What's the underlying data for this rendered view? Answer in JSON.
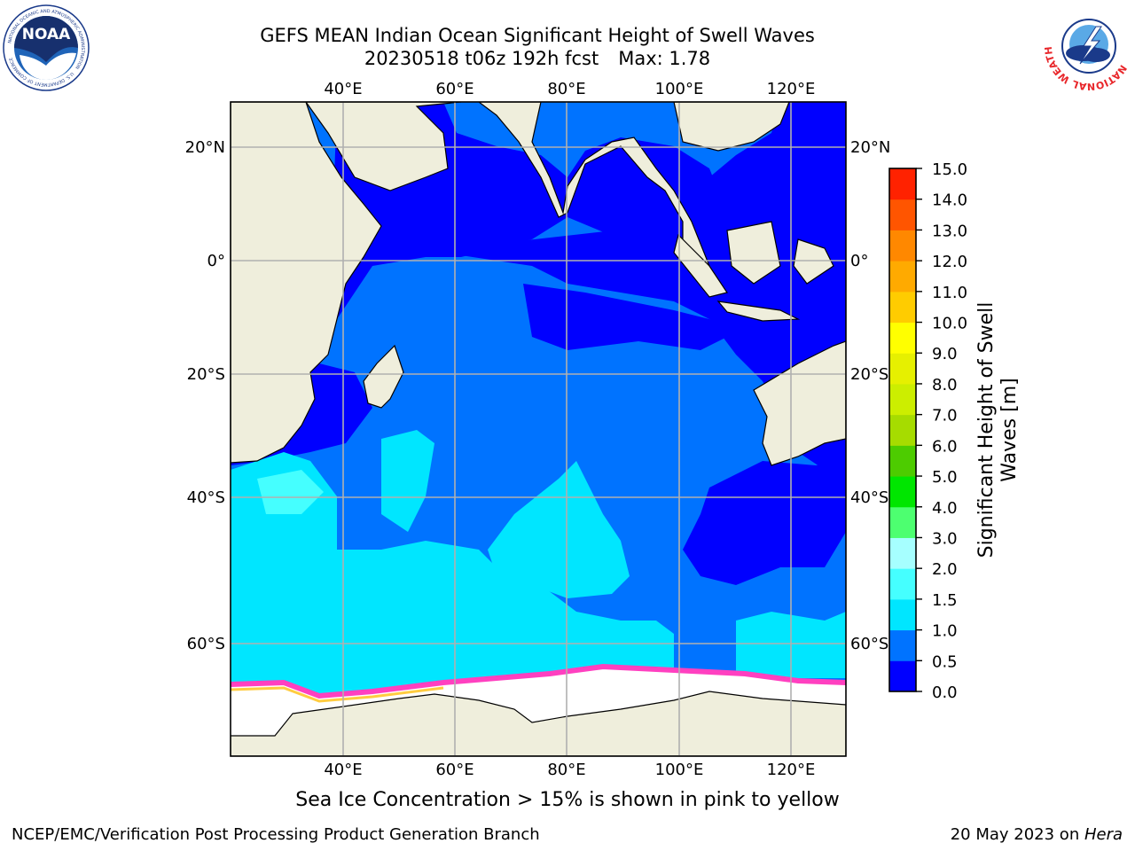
{
  "header": {
    "title_line1": "GEFS MEAN Indian Ocean Significant Height of Swell Waves",
    "run": "20230518 t06z 192h fcst",
    "max_label": "Max: 1.78"
  },
  "logos": {
    "left": "noaa-logo",
    "right": "nws-logo",
    "noaa_text": "NOAA",
    "noaa_ring_text": "NATIONAL OCEANIC AND ATMOSPHERIC ADMINISTRATION",
    "noaa_ring_bottom": "U.S. DEPARTMENT OF COMMERCE",
    "nws_ring_text": "NATIONAL WEATHER SERVICE"
  },
  "map": {
    "lon_ticks": [
      "40°E",
      "60°E",
      "80°E",
      "100°E",
      "120°E"
    ],
    "lat_ticks": [
      "20°N",
      "0°",
      "20°S",
      "40°S",
      "60°S"
    ],
    "colors": {
      "land": "#efeedc",
      "grid": "#b0b0b0"
    }
  },
  "colorbar": {
    "label_line1": "Significant Height of Swell",
    "label_line2": "Waves [m]",
    "ticks": [
      "0.0",
      "0.5",
      "1.0",
      "1.5",
      "2.0",
      "3.0",
      "4.0",
      "5.0",
      "6.0",
      "7.0",
      "8.0",
      "9.0",
      "10.0",
      "11.0",
      "12.0",
      "13.0",
      "14.0",
      "15.0"
    ],
    "colors": [
      "#0000ff",
      "#0073ff",
      "#00e6ff",
      "#45ffff",
      "#a6ffff",
      "#4dff70",
      "#00e600",
      "#4dcc00",
      "#a6dc00",
      "#ccee00",
      "#e6f000",
      "#ffff00",
      "#ffcc00",
      "#ffaa00",
      "#ff8800",
      "#ff5500",
      "#ff2200",
      "#ff0000"
    ]
  },
  "ice_note": "Sea Ice Concentration > 15% is shown in pink to yellow",
  "footer": {
    "left": "NCEP/EMC/Verification Post Processing Product Generation Branch",
    "right_prefix": "20 May 2023 on ",
    "right_host": "Hera"
  }
}
